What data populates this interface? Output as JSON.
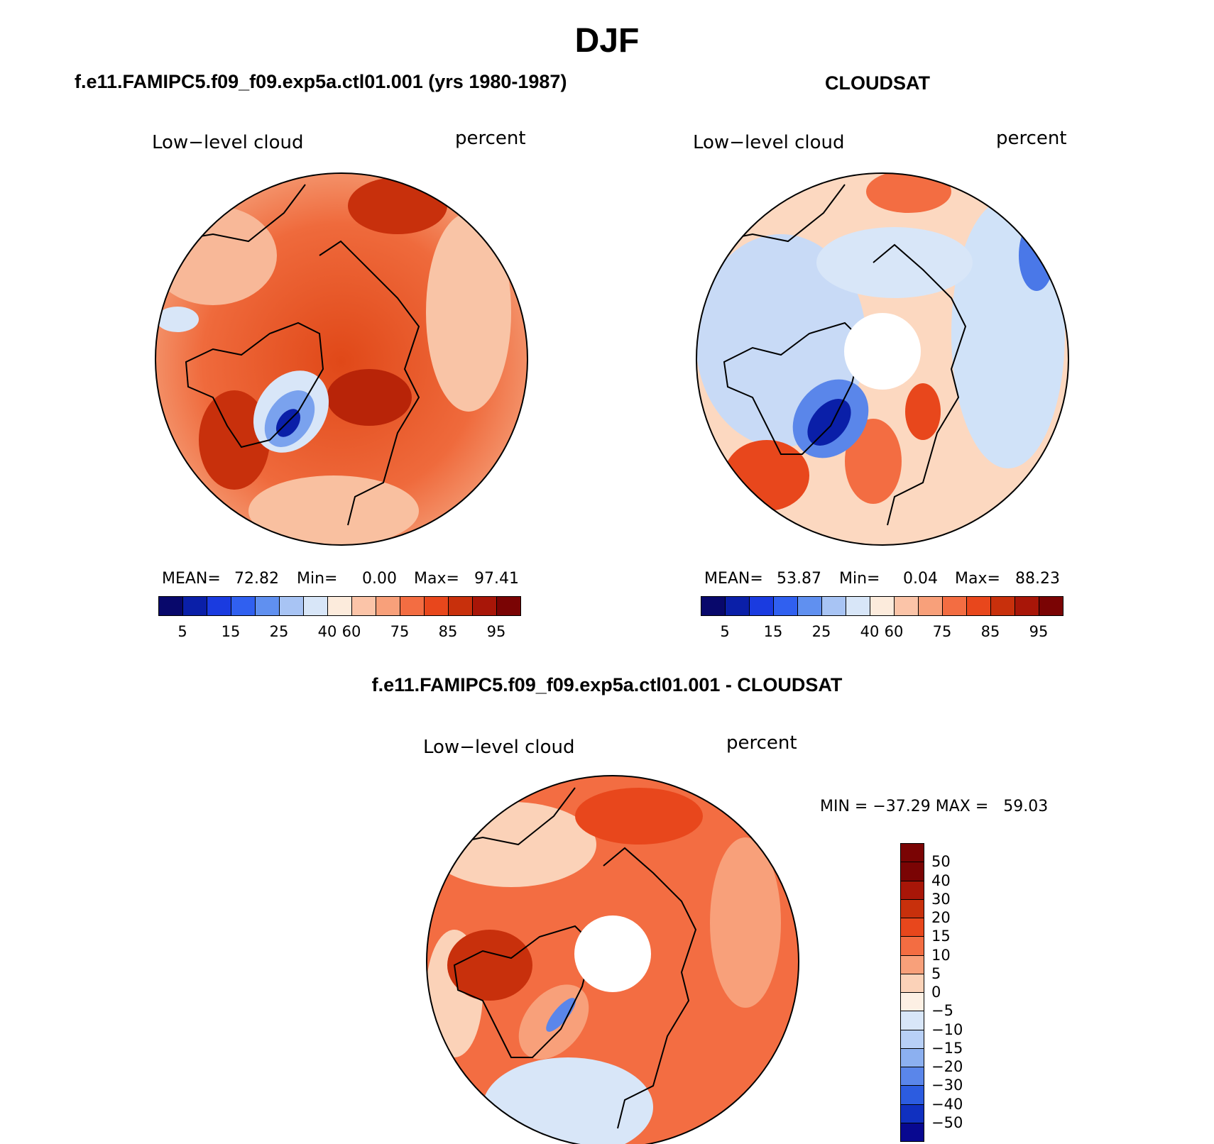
{
  "title": "DJF",
  "panels": {
    "model": {
      "header": "f.e11.FAMIPC5.f09_f09.exp5a.ctl01.001 (yrs 1980-1987)",
      "left_label": "Low−level cloud",
      "right_label": "percent",
      "mean_label": "MEAN=",
      "mean_value": "72.82",
      "min_label": "Min=",
      "min_value": "0.00",
      "max_label": "Max=",
      "max_value": "97.41"
    },
    "obs": {
      "header": "CLOUDSAT",
      "left_label": "Low−level cloud",
      "right_label": "percent",
      "mean_label": "MEAN=",
      "mean_value": "53.87",
      "min_label": "Min=",
      "min_value": "0.04",
      "max_label": "Max=",
      "max_value": "88.23"
    },
    "diff": {
      "header": "f.e11.FAMIPC5.f09_f09.exp5a.ctl01.001 - CLOUDSAT",
      "left_label": "Low−level cloud",
      "right_label": "percent",
      "minmax_text": "MIN = −37.29 MAX =   59.03"
    }
  },
  "colorbar_abs": {
    "colors": [
      "#08086b",
      "#0a1fa8",
      "#1a3be0",
      "#3060f0",
      "#6090f0",
      "#a8c4f4",
      "#d8e6f8",
      "#fcebdc",
      "#fbc4a8",
      "#f8a07a",
      "#f36d42",
      "#e8471c",
      "#c8300c",
      "#a81608",
      "#7a0404"
    ],
    "tick_labels": [
      "5",
      "15",
      "25",
      "40",
      "60",
      "75",
      "85",
      "95"
    ]
  },
  "colorbar_diff": {
    "colors": [
      "#7a0404",
      "#a81608",
      "#c8300c",
      "#e8471c",
      "#f36d42",
      "#f8a07a",
      "#fbd2b8",
      "#fdf0e4",
      "#d8e6f8",
      "#b8d0f6",
      "#8cb0f0",
      "#5a86ea",
      "#2c5ce0",
      "#1030c0",
      "#080890"
    ],
    "tick_labels": [
      "50",
      "40",
      "30",
      "20",
      "15",
      "10",
      "5",
      "0",
      "−5",
      "−10",
      "−15",
      "−20",
      "−30",
      "−40",
      "−50"
    ]
  }
}
